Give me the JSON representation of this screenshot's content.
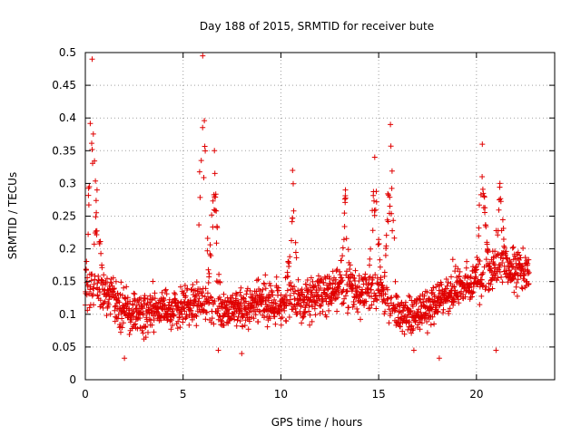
{
  "chart_data": {
    "type": "scatter",
    "title": "Day 188 of 2015, SRMTID for receiver bute",
    "xlabel": "GPS time / hours",
    "ylabel": "SRMTID / TECUs",
    "xlim": [
      0,
      24
    ],
    "ylim": [
      0,
      0.5
    ],
    "xticks": [
      0,
      5,
      10,
      15,
      20
    ],
    "yticks": [
      0,
      0.05,
      0.1,
      0.15,
      0.2,
      0.25,
      0.3,
      0.35,
      0.4,
      0.45,
      0.5
    ],
    "xtick_labels": [
      "0",
      "5",
      "10",
      "15",
      "20"
    ],
    "ytick_labels": [
      "0",
      "0.05",
      "0.1",
      "0.15",
      "0.2",
      "0.25",
      "0.3",
      "0.35",
      "0.4",
      "0.45",
      "0.5"
    ],
    "grid": true,
    "marker": "+",
    "color": "#e00000",
    "series": [
      {
        "name": "SRMTID",
        "profile": [
          {
            "x": 0.0,
            "y": 0.14
          },
          {
            "x": 1.0,
            "y": 0.13
          },
          {
            "x": 2.0,
            "y": 0.11
          },
          {
            "x": 3.0,
            "y": 0.1
          },
          {
            "x": 4.0,
            "y": 0.11
          },
          {
            "x": 5.0,
            "y": 0.11
          },
          {
            "x": 6.0,
            "y": 0.12
          },
          {
            "x": 7.0,
            "y": 0.11
          },
          {
            "x": 8.0,
            "y": 0.11
          },
          {
            "x": 9.0,
            "y": 0.12
          },
          {
            "x": 10.0,
            "y": 0.12
          },
          {
            "x": 11.0,
            "y": 0.12
          },
          {
            "x": 12.0,
            "y": 0.13
          },
          {
            "x": 13.0,
            "y": 0.14
          },
          {
            "x": 14.0,
            "y": 0.13
          },
          {
            "x": 15.0,
            "y": 0.14
          },
          {
            "x": 16.0,
            "y": 0.1
          },
          {
            "x": 17.0,
            "y": 0.1
          },
          {
            "x": 18.0,
            "y": 0.12
          },
          {
            "x": 19.0,
            "y": 0.14
          },
          {
            "x": 20.0,
            "y": 0.15
          },
          {
            "x": 21.0,
            "y": 0.17
          },
          {
            "x": 22.0,
            "y": 0.17
          },
          {
            "x": 22.7,
            "y": 0.16
          }
        ],
        "peaks": [
          {
            "x": 0.35,
            "y": 0.49
          },
          {
            "x": 0.6,
            "y": 0.29
          },
          {
            "x": 6.0,
            "y": 0.495
          },
          {
            "x": 6.6,
            "y": 0.35
          },
          {
            "x": 10.6,
            "y": 0.32
          },
          {
            "x": 13.3,
            "y": 0.29
          },
          {
            "x": 14.8,
            "y": 0.34
          },
          {
            "x": 15.6,
            "y": 0.39
          },
          {
            "x": 20.3,
            "y": 0.36
          },
          {
            "x": 21.2,
            "y": 0.3
          }
        ],
        "lows": [
          {
            "x": 2.0,
            "y": 0.033
          },
          {
            "x": 6.8,
            "y": 0.045
          },
          {
            "x": 8.0,
            "y": 0.04
          },
          {
            "x": 16.8,
            "y": 0.045
          },
          {
            "x": 18.1,
            "y": 0.033
          },
          {
            "x": 21.0,
            "y": 0.045
          }
        ]
      }
    ]
  }
}
